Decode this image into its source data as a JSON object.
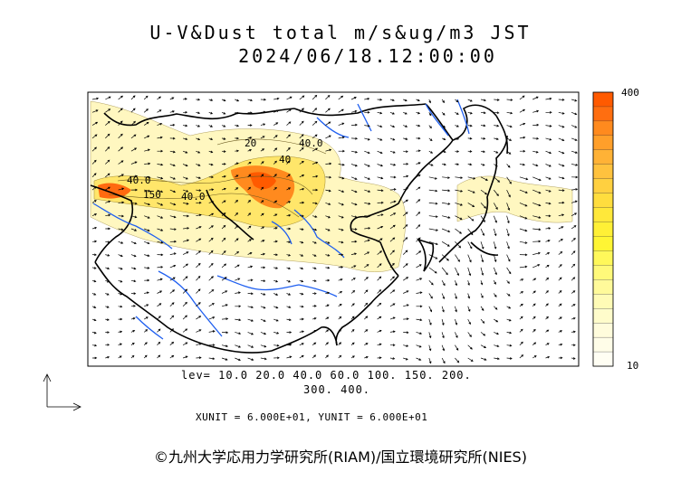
{
  "header": {
    "title": "U-V&Dust total m/s&ug/m3 JST",
    "datetime": "2024/06/18.12:00:00"
  },
  "map": {
    "contour_labels": [
      "40.0",
      "40.0",
      "150",
      "40.0",
      "40",
      "20"
    ]
  },
  "levels": {
    "line1": "lev= 10.0 20.0 40.0 60.0 100. 150. 200.",
    "line2": "300. 400."
  },
  "units": "XUNIT = 6.000E+01, YUNIT = 6.000E+01",
  "colorbar": {
    "max_label": "400",
    "min_label": "10",
    "colors": [
      "#ff5a00",
      "#ff6e10",
      "#ff8a1e",
      "#ff9f2a",
      "#ffb236",
      "#ffc23e",
      "#ffd040",
      "#ffdd3e",
      "#ffe83a",
      "#fff036",
      "#fff534",
      "#fff85a",
      "#fff97a",
      "#fffa9a",
      "#fffbb6",
      "#fffccb",
      "#fffcdc",
      "#fffde8",
      "#fffef3"
    ]
  },
  "credit": "©九州大学応用力学研究所(RIAM)/国立環境研究所(NIES)",
  "colors": {
    "coast": "#000000",
    "river": "#1f5ff0",
    "dust_low": "#fff7c0",
    "dust_mid": "#ffe040",
    "dust_high": "#ff6a10"
  }
}
